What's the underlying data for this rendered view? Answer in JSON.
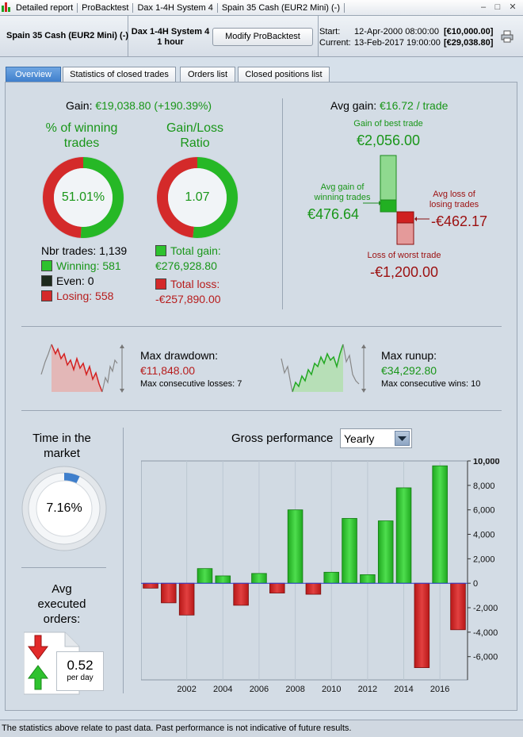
{
  "titlebar": {
    "tabs": [
      "Detailed report",
      "ProBacktest",
      "Dax 1-4H System 4",
      "Spain 35 Cash (EUR2 Mini) (-)"
    ],
    "minimize": "–",
    "restore": "□",
    "close": "✕"
  },
  "header": {
    "instrument": "Spain 35 Cash (EUR2 Mini) (-)",
    "system_name": "Dax 1-4H System 4",
    "timeframe": "1 hour",
    "modify_label": "Modify ProBacktest",
    "start_label": "Start:",
    "start_value": "12-Apr-2000 08:00:00",
    "start_capital": "[€10,000.00]",
    "current_label": "Current:",
    "current_value": "13-Feb-2017 19:00:00",
    "current_capital": "[€29,038.80]"
  },
  "tabs": [
    "Overview",
    "Statistics of closed trades",
    "Orders list",
    "Closed positions list"
  ],
  "gain": {
    "label": "Gain:",
    "value": "€19,038.80 (+190.39%)"
  },
  "winning_pct": {
    "title_line1": "% of winning",
    "title_line2": "trades",
    "value_text": "51.01%",
    "fraction": 0.5101
  },
  "gain_loss_ratio": {
    "title_line1": "Gain/Loss",
    "title_line2": "Ratio",
    "value_text": "1.07",
    "fraction": 0.518
  },
  "trades": {
    "nbr_label": "Nbr trades: 1,139",
    "winning": "Winning: 581",
    "even": "Even: 0",
    "losing": "Losing: 558",
    "total_gain_label": "Total gain:",
    "total_gain_value": "€276,928.80",
    "total_loss_label": "Total loss:",
    "total_loss_value": "-€257,890.00"
  },
  "avg": {
    "avg_gain_label": "Avg gain:",
    "avg_gain_value": "€16.72 / trade",
    "best_label": "Gain of best trade",
    "best_value": "€2,056.00",
    "avg_win_label_1": "Avg gain of",
    "avg_win_label_2": "winning trades",
    "avg_win_value": "€476.64",
    "avg_loss_label_1": "Avg loss of",
    "avg_loss_label_2": "losing trades",
    "avg_loss_value": "-€462.17",
    "worst_label": "Loss of worst trade",
    "worst_value": "-€1,200.00"
  },
  "drawdown": {
    "label": "Max drawdown:",
    "value": "€11,848.00",
    "consec": "Max consecutive losses: 7"
  },
  "runup": {
    "label": "Max runup:",
    "value": "€34,292.80",
    "consec": "Max consecutive wins: 10"
  },
  "time_in_market": {
    "title_line1": "Time in the",
    "title_line2": "market",
    "value_text": "7.16%",
    "fraction": 0.0716
  },
  "avg_orders": {
    "title_line1": "Avg",
    "title_line2": "executed",
    "title_line3": "orders:",
    "value": "0.52",
    "unit": "per day"
  },
  "gross_performance": {
    "label": "Gross performance",
    "period": "Yearly"
  },
  "colors": {
    "green": "#22b022",
    "red": "#d02020",
    "accent": "#3f7fcc"
  },
  "chart_data": {
    "type": "bar",
    "x": [
      2000,
      2001,
      2002,
      2003,
      2004,
      2005,
      2006,
      2007,
      2008,
      2009,
      2010,
      2011,
      2012,
      2013,
      2014,
      2015,
      2016,
      2017
    ],
    "values": [
      -400,
      -1600,
      -2600,
      1200,
      600,
      -1800,
      800,
      -800,
      6000,
      -900,
      900,
      5300,
      700,
      5100,
      7800,
      -6900,
      9600,
      -3800
    ],
    "xticks": [
      "2002",
      "2004",
      "2006",
      "2008",
      "2010",
      "2012",
      "2014",
      "2016"
    ],
    "yticks": [
      "10,000",
      "8,000",
      "6,000",
      "4,000",
      "2,000",
      "0",
      "-2,000",
      "-4,000",
      "-6,000"
    ],
    "ylim": [
      -7900,
      10000
    ],
    "grid": true
  },
  "footer": "The statistics above relate to past data. Past performance is not indicative of future results."
}
